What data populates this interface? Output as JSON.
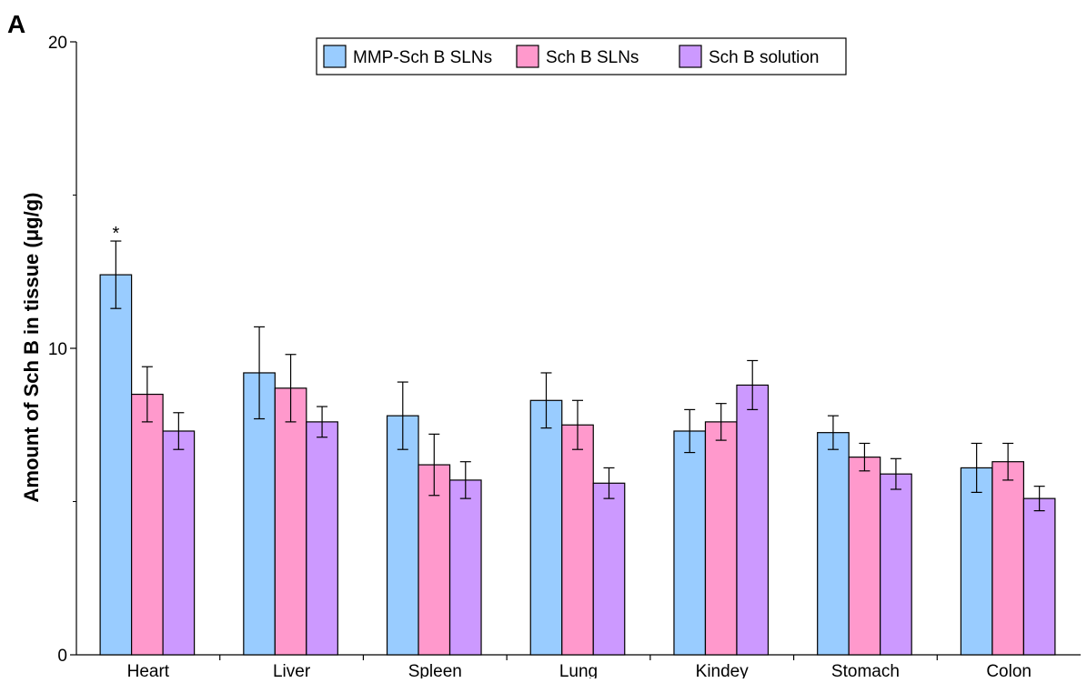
{
  "panel_label": "A",
  "chart_data": {
    "type": "bar",
    "title": "",
    "xlabel": "",
    "ylabel": "Amount of Sch B in tissue (μg/g)",
    "ylim": [
      0,
      20
    ],
    "yticks": [
      0,
      10,
      20
    ],
    "grid": false,
    "legend_position": "top-center",
    "categories": [
      "Heart",
      "Liver",
      "Spleen",
      "Lung",
      "Kindey",
      "Stomach",
      "Colon"
    ],
    "series": [
      {
        "name": "MMP-Sch B SLNs",
        "color": "#99ccff",
        "values": [
          12.4,
          9.2,
          7.8,
          8.3,
          7.3,
          7.25,
          6.1
        ],
        "errors": [
          1.1,
          1.5,
          1.1,
          0.9,
          0.7,
          0.55,
          0.8
        ]
      },
      {
        "name": "Sch B SLNs",
        "color": "#ff99cc",
        "values": [
          8.5,
          8.7,
          6.2,
          7.5,
          7.6,
          6.45,
          6.3
        ],
        "errors": [
          0.9,
          1.1,
          1.0,
          0.8,
          0.6,
          0.45,
          0.6
        ]
      },
      {
        "name": "Sch B solution",
        "color": "#cc99ff",
        "values": [
          7.3,
          7.6,
          5.7,
          5.6,
          8.8,
          5.9,
          5.1
        ],
        "errors": [
          0.6,
          0.5,
          0.6,
          0.5,
          0.8,
          0.5,
          0.4
        ]
      }
    ],
    "annotations": [
      {
        "text": "*",
        "category": "Heart",
        "series": "MMP-Sch B SLNs"
      }
    ]
  }
}
